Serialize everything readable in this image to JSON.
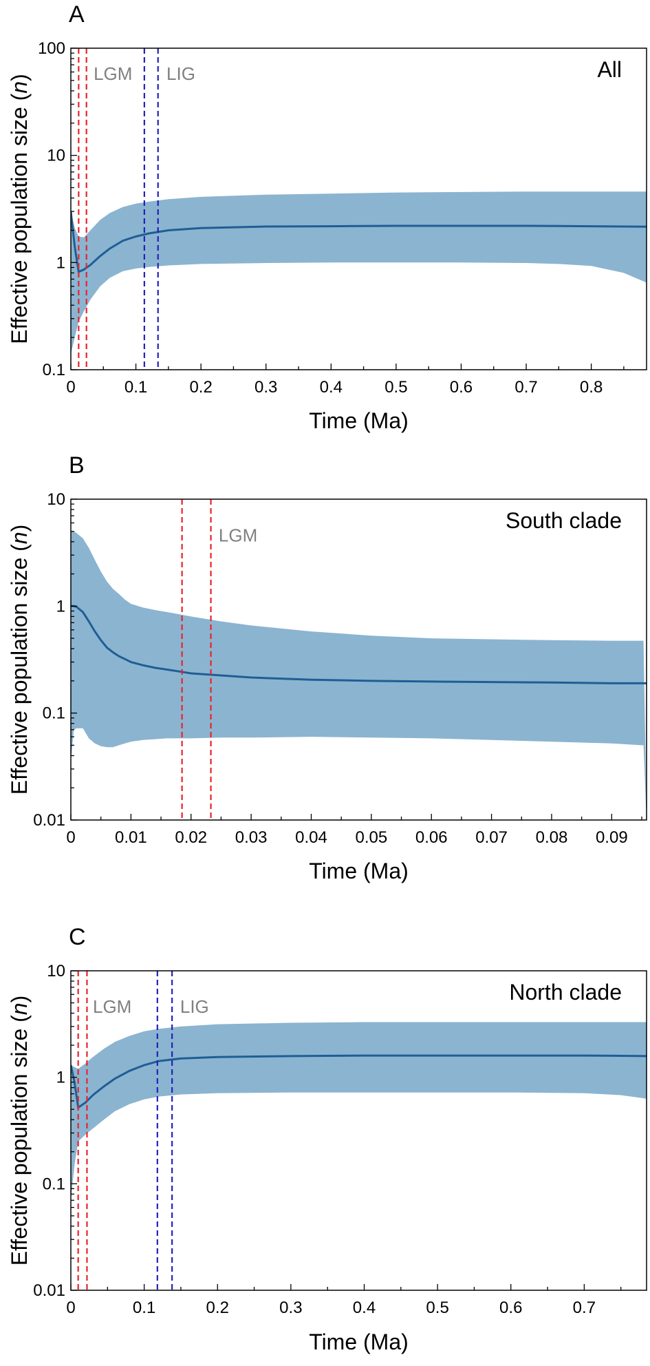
{
  "chart_data": [
    {
      "id": "A",
      "type": "area",
      "panel_label": "A",
      "corner_label": "All",
      "xlabel": "Time (Ma)",
      "ylabel_prefix": "Effective population size (",
      "ylabel_var": "n",
      "ylabel_suffix": ")",
      "log_y": true,
      "xlim": [
        0,
        0.885
      ],
      "ylim": [
        0.1,
        100
      ],
      "xticks": [
        0,
        0.1,
        0.2,
        0.3,
        0.4,
        0.5,
        0.6,
        0.7,
        0.8
      ],
      "xtick_labels": [
        "0",
        "0.1",
        "0.2",
        "0.3",
        "0.4",
        "0.5",
        "0.6",
        "0.7",
        "0.8"
      ],
      "yticks": [
        0.1,
        1,
        10,
        100
      ],
      "ytick_labels": [
        "0.1",
        "1",
        "10",
        "100"
      ],
      "x": [
        0,
        0.006,
        0.012,
        0.02,
        0.03,
        0.045,
        0.06,
        0.08,
        0.1,
        0.12,
        0.15,
        0.2,
        0.3,
        0.4,
        0.5,
        0.6,
        0.7,
        0.75,
        0.8,
        0.85,
        0.885
      ],
      "median": [
        3.0,
        1.4,
        0.82,
        0.86,
        0.95,
        1.15,
        1.35,
        1.6,
        1.75,
        1.87,
        2.0,
        2.1,
        2.17,
        2.18,
        2.2,
        2.2,
        2.2,
        2.19,
        2.18,
        2.17,
        2.16
      ],
      "upper": [
        3.0,
        2.1,
        1.75,
        1.72,
        2.0,
        2.5,
        2.9,
        3.3,
        3.55,
        3.7,
        3.9,
        4.1,
        4.3,
        4.4,
        4.5,
        4.55,
        4.6,
        4.6,
        4.6,
        4.6,
        4.6
      ],
      "lower": [
        0.14,
        0.2,
        0.28,
        0.35,
        0.45,
        0.6,
        0.72,
        0.83,
        0.88,
        0.91,
        0.94,
        0.97,
        0.99,
        1.0,
        1.0,
        1.0,
        0.99,
        0.97,
        0.93,
        0.8,
        0.65
      ],
      "vlines": [
        {
          "x": 0.012,
          "color": "red"
        },
        {
          "x": 0.024,
          "color": "red"
        },
        {
          "x": 0.113,
          "color": "blue"
        },
        {
          "x": 0.134,
          "color": "blue"
        }
      ],
      "period_labels": [
        {
          "text": "LGM",
          "x": 0.035,
          "y": 58
        },
        {
          "text": "LIG",
          "x": 0.147,
          "y": 58
        }
      ]
    },
    {
      "id": "B",
      "type": "area",
      "panel_label": "B",
      "corner_label": "South clade",
      "xlabel": "Time (Ma)",
      "ylabel_prefix": "Effective population size (",
      "ylabel_var": "n",
      "ylabel_suffix": ")",
      "log_y": true,
      "xlim": [
        0,
        0.0958
      ],
      "ylim": [
        0.01,
        10
      ],
      "xticks": [
        0,
        0.01,
        0.02,
        0.03,
        0.04,
        0.05,
        0.06,
        0.07,
        0.08,
        0.09
      ],
      "xtick_labels": [
        "0",
        "0.01",
        "0.02",
        "0.03",
        "0.04",
        "0.05",
        "0.06",
        "0.07",
        "0.08",
        "0.09"
      ],
      "yticks": [
        0.01,
        0.1,
        1,
        10
      ],
      "ytick_labels": [
        "0.01",
        "0.1",
        "1",
        "10"
      ],
      "x": [
        0,
        0.0005,
        0.001,
        0.002,
        0.003,
        0.004,
        0.005,
        0.006,
        0.007,
        0.008,
        0.009,
        0.01,
        0.012,
        0.014,
        0.016,
        0.018,
        0.02,
        0.025,
        0.03,
        0.04,
        0.05,
        0.06,
        0.07,
        0.08,
        0.09,
        0.095,
        0.0953,
        0.0958
      ],
      "median": [
        1.0,
        1.0,
        0.98,
        0.88,
        0.72,
        0.58,
        0.48,
        0.41,
        0.37,
        0.34,
        0.32,
        0.3,
        0.28,
        0.265,
        0.255,
        0.245,
        0.235,
        0.225,
        0.215,
        0.205,
        0.2,
        0.197,
        0.195,
        0.193,
        0.19,
        0.19,
        0.19,
        0.19
      ],
      "upper": [
        5.0,
        5.0,
        4.8,
        4.3,
        3.5,
        2.7,
        2.1,
        1.7,
        1.45,
        1.3,
        1.15,
        1.05,
        0.97,
        0.92,
        0.88,
        0.84,
        0.8,
        0.72,
        0.66,
        0.58,
        0.53,
        0.5,
        0.49,
        0.48,
        0.475,
        0.475,
        0.475,
        0.01
      ],
      "lower": [
        0.035,
        0.07,
        0.072,
        0.072,
        0.058,
        0.052,
        0.049,
        0.048,
        0.048,
        0.05,
        0.052,
        0.054,
        0.056,
        0.057,
        0.058,
        0.058,
        0.058,
        0.059,
        0.059,
        0.06,
        0.059,
        0.058,
        0.056,
        0.054,
        0.052,
        0.05,
        0.05,
        0.01
      ],
      "vlines": [
        {
          "x": 0.0185,
          "color": "red"
        },
        {
          "x": 0.0233,
          "color": "red"
        }
      ],
      "period_labels": [
        {
          "text": "LGM",
          "x": 0.0246,
          "y": 4.6
        }
      ]
    },
    {
      "id": "C",
      "type": "area",
      "panel_label": "C",
      "corner_label": "North clade",
      "xlabel": "Time (Ma)",
      "ylabel_prefix": "Effective population size (",
      "ylabel_var": "n",
      "ylabel_suffix": ")",
      "log_y": true,
      "xlim": [
        0,
        0.785
      ],
      "ylim": [
        0.01,
        10
      ],
      "xticks": [
        0,
        0.1,
        0.2,
        0.3,
        0.4,
        0.5,
        0.6,
        0.7
      ],
      "xtick_labels": [
        "0",
        "0.1",
        "0.2",
        "0.3",
        "0.4",
        "0.5",
        "0.6",
        "0.7"
      ],
      "yticks": [
        0.01,
        0.1,
        1,
        10
      ],
      "ytick_labels": [
        "0.01",
        "0.1",
        "1",
        "10"
      ],
      "x": [
        0,
        0.005,
        0.01,
        0.02,
        0.03,
        0.045,
        0.06,
        0.08,
        0.1,
        0.12,
        0.15,
        0.2,
        0.3,
        0.4,
        0.5,
        0.6,
        0.7,
        0.75,
        0.785
      ],
      "median": [
        1.3,
        0.9,
        0.52,
        0.58,
        0.68,
        0.82,
        0.97,
        1.15,
        1.3,
        1.42,
        1.5,
        1.55,
        1.58,
        1.6,
        1.6,
        1.6,
        1.6,
        1.59,
        1.58
      ],
      "upper": [
        1.3,
        1.25,
        1.2,
        1.35,
        1.55,
        1.85,
        2.15,
        2.45,
        2.7,
        2.85,
        3.0,
        3.15,
        3.25,
        3.3,
        3.3,
        3.3,
        3.3,
        3.3,
        3.3
      ],
      "lower": [
        0.07,
        0.15,
        0.25,
        0.29,
        0.33,
        0.4,
        0.48,
        0.56,
        0.62,
        0.66,
        0.69,
        0.71,
        0.72,
        0.72,
        0.72,
        0.72,
        0.71,
        0.68,
        0.63
      ],
      "vlines": [
        {
          "x": 0.01,
          "color": "red"
        },
        {
          "x": 0.022,
          "color": "red"
        },
        {
          "x": 0.118,
          "color": "blue"
        },
        {
          "x": 0.138,
          "color": "blue"
        }
      ],
      "period_labels": [
        {
          "text": "LGM",
          "x": 0.03,
          "y": 4.6
        },
        {
          "text": "LIG",
          "x": 0.149,
          "y": 4.6
        }
      ]
    }
  ]
}
